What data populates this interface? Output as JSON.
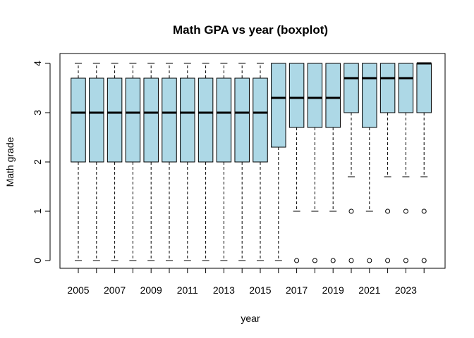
{
  "chart_data": {
    "type": "boxplot",
    "title": "Math GPA vs year (boxplot)",
    "xlabel": "year",
    "ylabel": "Math grade",
    "ylim": [
      0,
      4
    ],
    "yticks": [
      0,
      1,
      2,
      3,
      4
    ],
    "categories": [
      2005,
      2006,
      2007,
      2008,
      2009,
      2010,
      2011,
      2012,
      2013,
      2014,
      2015,
      2016,
      2017,
      2018,
      2019,
      2020,
      2021,
      2022,
      2023,
      2024
    ],
    "xtick_labels": [
      "2005",
      "2007",
      "2009",
      "2011",
      "2013",
      "2015",
      "2017",
      "2019",
      "2021",
      "2023"
    ],
    "box_color": "#add8e6",
    "boxes": [
      {
        "year": 2005,
        "whisker_low": 0,
        "q1": 2,
        "median": 3,
        "q3": 3.7,
        "whisker_high": 4,
        "outliers": []
      },
      {
        "year": 2006,
        "whisker_low": 0,
        "q1": 2,
        "median": 3,
        "q3": 3.7,
        "whisker_high": 4,
        "outliers": []
      },
      {
        "year": 2007,
        "whisker_low": 0,
        "q1": 2,
        "median": 3,
        "q3": 3.7,
        "whisker_high": 4,
        "outliers": []
      },
      {
        "year": 2008,
        "whisker_low": 0,
        "q1": 2,
        "median": 3,
        "q3": 3.7,
        "whisker_high": 4,
        "outliers": []
      },
      {
        "year": 2009,
        "whisker_low": 0,
        "q1": 2,
        "median": 3,
        "q3": 3.7,
        "whisker_high": 4,
        "outliers": []
      },
      {
        "year": 2010,
        "whisker_low": 0,
        "q1": 2,
        "median": 3,
        "q3": 3.7,
        "whisker_high": 4,
        "outliers": []
      },
      {
        "year": 2011,
        "whisker_low": 0,
        "q1": 2,
        "median": 3,
        "q3": 3.7,
        "whisker_high": 4,
        "outliers": []
      },
      {
        "year": 2012,
        "whisker_low": 0,
        "q1": 2,
        "median": 3,
        "q3": 3.7,
        "whisker_high": 4,
        "outliers": []
      },
      {
        "year": 2013,
        "whisker_low": 0,
        "q1": 2,
        "median": 3,
        "q3": 3.7,
        "whisker_high": 4,
        "outliers": []
      },
      {
        "year": 2014,
        "whisker_low": 0,
        "q1": 2,
        "median": 3,
        "q3": 3.7,
        "whisker_high": 4,
        "outliers": []
      },
      {
        "year": 2015,
        "whisker_low": 0,
        "q1": 2,
        "median": 3,
        "q3": 3.7,
        "whisker_high": 4,
        "outliers": []
      },
      {
        "year": 2016,
        "whisker_low": 0,
        "q1": 2.3,
        "median": 3.3,
        "q3": 4,
        "whisker_high": 4,
        "outliers": []
      },
      {
        "year": 2017,
        "whisker_low": 1,
        "q1": 2.7,
        "median": 3.3,
        "q3": 4,
        "whisker_high": 4,
        "outliers": [
          0
        ]
      },
      {
        "year": 2018,
        "whisker_low": 1,
        "q1": 2.7,
        "median": 3.3,
        "q3": 4,
        "whisker_high": 4,
        "outliers": [
          0
        ]
      },
      {
        "year": 2019,
        "whisker_low": 1,
        "q1": 2.7,
        "median": 3.3,
        "q3": 4,
        "whisker_high": 4,
        "outliers": [
          0
        ]
      },
      {
        "year": 2020,
        "whisker_low": 1.7,
        "q1": 3,
        "median": 3.7,
        "q3": 4,
        "whisker_high": 4,
        "outliers": [
          1,
          0
        ]
      },
      {
        "year": 2021,
        "whisker_low": 1,
        "q1": 2.7,
        "median": 3.7,
        "q3": 4,
        "whisker_high": 4,
        "outliers": [
          0
        ]
      },
      {
        "year": 2022,
        "whisker_low": 1.7,
        "q1": 3,
        "median": 3.7,
        "q3": 4,
        "whisker_high": 4,
        "outliers": [
          1,
          0
        ]
      },
      {
        "year": 2023,
        "whisker_low": 1.7,
        "q1": 3,
        "median": 3.7,
        "q3": 4,
        "whisker_high": 4,
        "outliers": [
          1,
          0
        ]
      },
      {
        "year": 2024,
        "whisker_low": 1.7,
        "q1": 3,
        "median": 4,
        "q3": 4,
        "whisker_high": 4,
        "outliers": [
          1,
          0
        ]
      }
    ]
  }
}
